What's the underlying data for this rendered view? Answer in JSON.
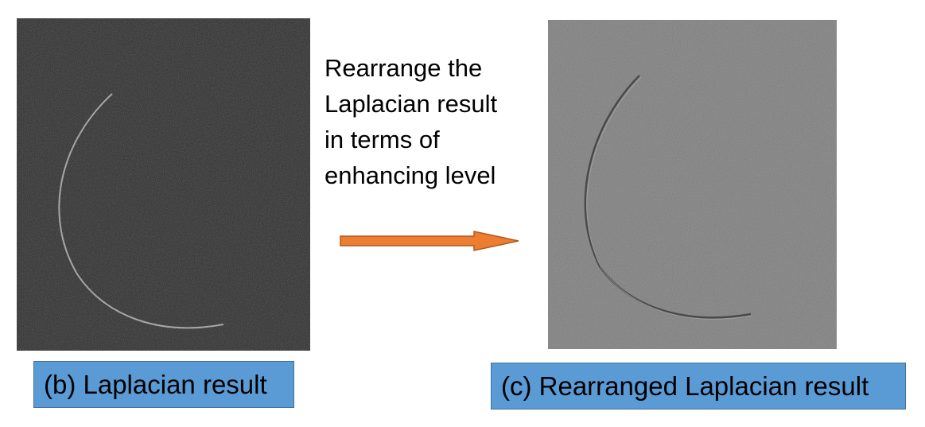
{
  "left_panel": {
    "caption": "(b) Laplacian result",
    "image_tone": "#2a2a2a",
    "edge_tone": "#b9b9b9"
  },
  "right_panel": {
    "caption": "(c) Rearranged Laplacian result",
    "image_tone": "#7f7f7f",
    "edge_tone": "#3a3a3a"
  },
  "middle": {
    "lines": [
      "Rearrange the",
      "Laplacian result",
      "in terms of",
      "enhancing level"
    ],
    "arrow_icon": "right-arrow-icon"
  },
  "colors": {
    "caption_fill": "#5b9bd5",
    "caption_border": "#41719c",
    "arrow_fill": "#ed7d31",
    "arrow_stroke": "#ae5a21"
  }
}
